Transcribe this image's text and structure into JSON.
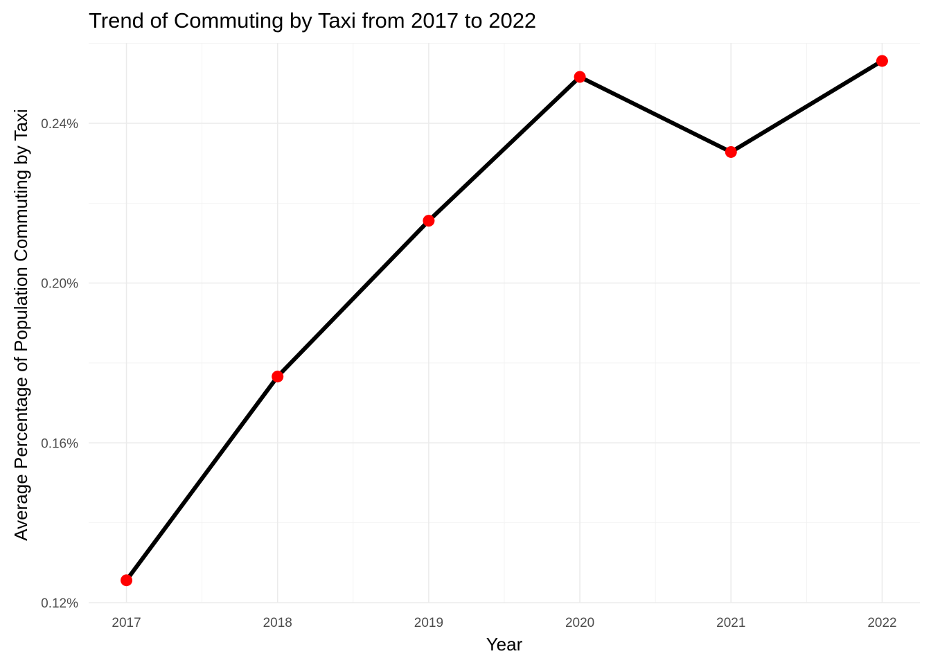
{
  "chart_data": {
    "type": "line",
    "title": "Trend of Commuting by Taxi from 2017 to 2022",
    "xlabel": "Year",
    "ylabel": "Average Percentage of Population Commuting by Taxi",
    "x": [
      2017,
      2018,
      2019,
      2020,
      2021,
      2022
    ],
    "x_tick_labels": [
      "2017",
      "2018",
      "2019",
      "2020",
      "2021",
      "2022"
    ],
    "y": [
      0.1256,
      0.1766,
      0.2156,
      0.2516,
      0.2328,
      0.2556
    ],
    "y_ticks": [
      0.12,
      0.16,
      0.2,
      0.24
    ],
    "y_tick_labels": [
      "0.12%",
      "0.16%",
      "0.20%",
      "0.24%"
    ],
    "xlim": [
      2016.75,
      2022.25
    ],
    "ylim": [
      0.12,
      0.2601
    ],
    "grid": true,
    "legend": "none",
    "line_color": "#000000",
    "point_color": "#ff0000",
    "grid_color": "#ebebeb",
    "tick_label_color": "#4d4d4d"
  }
}
